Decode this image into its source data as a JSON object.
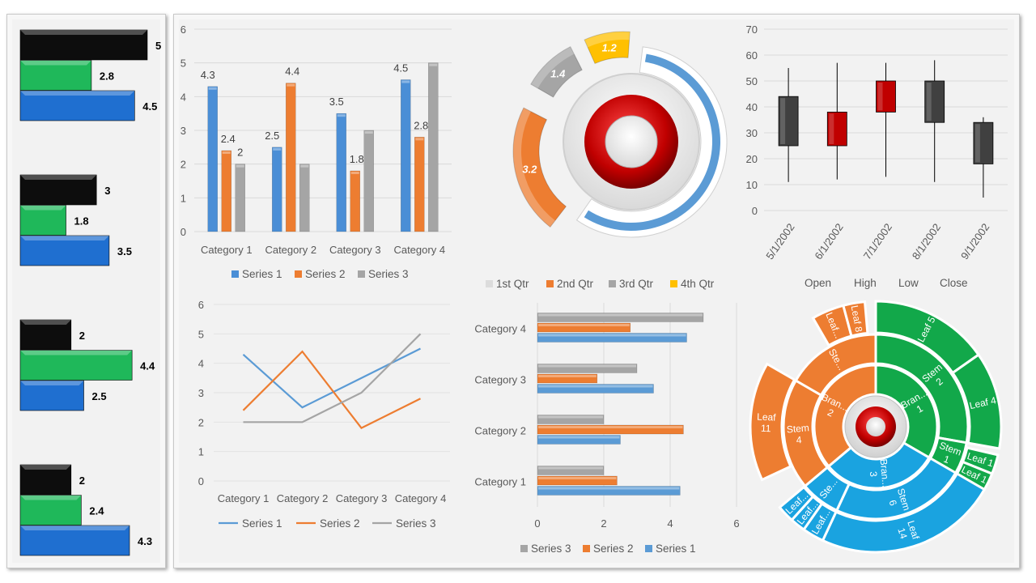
{
  "left_bars": {
    "groups": [
      {
        "black": 5,
        "green": 2.8,
        "blue": 4.5,
        "black_label": "5",
        "green_label": "2.8",
        "blue_label": "4.5"
      },
      {
        "black": 3,
        "green": 1.8,
        "blue": 3.5,
        "black_label": "3",
        "green_label": "1.8",
        "blue_label": "3.5"
      },
      {
        "black": 2,
        "green": 4.4,
        "blue": 2.5,
        "black_label": "2",
        "green_label": "4.4",
        "blue_label": "2.5"
      },
      {
        "black": 2,
        "green": 2.4,
        "blue": 4.3,
        "black_label": "2",
        "green_label": "2.4",
        "blue_label": "4.3"
      }
    ]
  },
  "colors": {
    "blue": "#4a8ed6",
    "orange": "#ed7d31",
    "gray": "#a5a5a5",
    "yellow": "#ffc000",
    "black": "#0d0d0d",
    "green": "#1fb85a",
    "red": "#c00000",
    "darkgray": "#404040",
    "sky": "#1aa3e0",
    "sgreen": "#12a84a"
  },
  "chart_data": [
    {
      "type": "bar",
      "categories": [
        "Category 1",
        "Category 2",
        "Category 3",
        "Category 4"
      ],
      "series": [
        {
          "name": "Series 1",
          "values": [
            4.3,
            2.5,
            3.5,
            4.5
          ]
        },
        {
          "name": "Series 2",
          "values": [
            2.4,
            4.4,
            1.8,
            2.8
          ]
        },
        {
          "name": "Series 3",
          "values": [
            2,
            2,
            3,
            5
          ]
        }
      ],
      "data_labels": [
        [
          "4.3",
          "2.5",
          "3.5",
          "4.5"
        ],
        [
          "2.4",
          "4.4",
          "1.8",
          "2.8"
        ],
        [
          "2",
          "",
          "",
          ""
        ]
      ],
      "ylim": [
        0,
        6
      ],
      "yticks": [
        "0",
        "1",
        "2",
        "3",
        "4",
        "5",
        "6"
      ],
      "legend": "bottom"
    },
    {
      "type": "pie",
      "categories": [
        "1st Qtr",
        "2nd Qtr",
        "3rd Qtr",
        "4th Qtr"
      ],
      "values": [
        8.2,
        3.2,
        1.4,
        1.2
      ],
      "data_labels": [
        "",
        "3.2",
        "1.4",
        "1.2"
      ],
      "legend": "bottom"
    },
    {
      "type": "candlestick",
      "x": [
        "5/1/2002",
        "6/1/2002",
        "7/1/2002",
        "8/1/2002",
        "9/1/2002"
      ],
      "open": [
        44,
        25,
        38,
        50,
        34
      ],
      "high": [
        55,
        57,
        57,
        58,
        36
      ],
      "low": [
        11,
        12,
        13,
        11,
        5
      ],
      "close": [
        25,
        38,
        50,
        34,
        18
      ],
      "ylim": [
        0,
        70
      ],
      "yticks": [
        "0",
        "10",
        "20",
        "30",
        "40",
        "50",
        "60",
        "70"
      ],
      "legend_labels": [
        "Open",
        "High",
        "Low",
        "Close"
      ]
    },
    {
      "type": "line",
      "categories": [
        "Category 1",
        "Category 2",
        "Category 3",
        "Category 4"
      ],
      "series": [
        {
          "name": "Series 1",
          "values": [
            4.3,
            2.5,
            3.5,
            4.5
          ]
        },
        {
          "name": "Series 2",
          "values": [
            2.4,
            4.4,
            1.8,
            2.8
          ]
        },
        {
          "name": "Series 3",
          "values": [
            2,
            2,
            3,
            5
          ]
        }
      ],
      "ylim": [
        0,
        6
      ],
      "yticks": [
        "0",
        "1",
        "2",
        "3",
        "4",
        "5",
        "6"
      ],
      "legend": "bottom"
    },
    {
      "type": "bar",
      "orientation": "horizontal",
      "categories": [
        "Category 1",
        "Category 2",
        "Category 3",
        "Category 4"
      ],
      "series": [
        {
          "name": "Series 1",
          "values": [
            4.3,
            2.5,
            3.5,
            4.5
          ]
        },
        {
          "name": "Series 2",
          "values": [
            2.4,
            4.4,
            1.8,
            2.8
          ]
        },
        {
          "name": "Series 3",
          "values": [
            2,
            2,
            3,
            5
          ]
        }
      ],
      "xlim": [
        0,
        6
      ],
      "xticks": [
        "0",
        "2",
        "4",
        "6"
      ],
      "legend": "bottom"
    },
    {
      "type": "sunburst",
      "segments": [
        {
          "ring": 1,
          "label": "Bran...",
          "value": "1",
          "color": "green"
        },
        {
          "ring": 1,
          "label": "Bran...",
          "value": "3",
          "color": "sky"
        },
        {
          "ring": 1,
          "label": "Bran...",
          "value": "2",
          "color": "orange"
        },
        {
          "ring": 2,
          "label": "Stem",
          "value": "2",
          "color": "green"
        },
        {
          "ring": 2,
          "label": "Stem",
          "value": "1",
          "color": "green"
        },
        {
          "ring": 2,
          "label": "Stem",
          "value": "6",
          "color": "sky"
        },
        {
          "ring": 2,
          "label": "Ste...",
          "value": "",
          "color": "sky"
        },
        {
          "ring": 2,
          "label": "Stem",
          "value": "4",
          "color": "orange"
        },
        {
          "ring": 2,
          "label": "Ste...",
          "value": "",
          "color": "orange"
        },
        {
          "ring": 3,
          "label": "Leaf 5",
          "value": "",
          "color": "green"
        },
        {
          "ring": 3,
          "label": "Leaf 4",
          "value": "",
          "color": "green"
        },
        {
          "ring": 3,
          "label": "Leaf 1",
          "value": "",
          "color": "green"
        },
        {
          "ring": 3,
          "label": "Leaf 1",
          "value": "",
          "color": "green"
        },
        {
          "ring": 3,
          "label": "Leaf",
          "value": "14",
          "color": "sky"
        },
        {
          "ring": 3,
          "label": "Leaf...",
          "value": "",
          "color": "sky"
        },
        {
          "ring": 3,
          "label": "Leaf...",
          "value": "",
          "color": "sky"
        },
        {
          "ring": 3,
          "label": "Leaf...",
          "value": "",
          "color": "sky"
        },
        {
          "ring": 3,
          "label": "Leaf",
          "value": "11",
          "color": "orange"
        },
        {
          "ring": 3,
          "label": "Leaf...",
          "value": "",
          "color": "orange"
        },
        {
          "ring": 3,
          "label": "Leaf 8",
          "value": "",
          "color": "orange"
        }
      ]
    }
  ]
}
